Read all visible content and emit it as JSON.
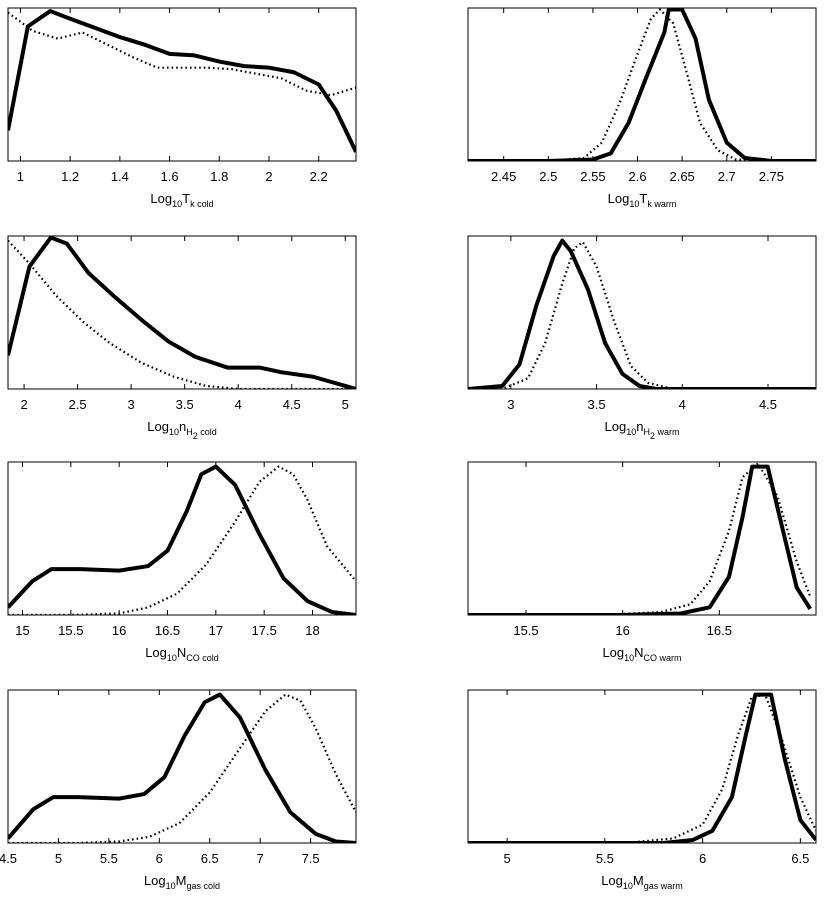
{
  "chart_data": [
    {
      "type": "line",
      "xlabel": {
        "base": "Log",
        "base_sub": "10",
        "var": "T",
        "var_sub": "k cold"
      },
      "xlim": [
        0.95,
        2.35
      ],
      "ylim": [
        0,
        1
      ],
      "xticks": [
        "1",
        "1.2",
        "1.4",
        "1.6",
        "1.8",
        "2",
        "2.2"
      ],
      "grid": false,
      "series": [
        {
          "style": "solid",
          "x": [
            0.95,
            1.03,
            1.12,
            1.2,
            1.3,
            1.4,
            1.5,
            1.6,
            1.7,
            1.8,
            1.9,
            2.0,
            2.1,
            2.2,
            2.27,
            2.35
          ],
          "y": [
            0.2,
            0.88,
            0.98,
            0.93,
            0.87,
            0.81,
            0.76,
            0.7,
            0.69,
            0.65,
            0.62,
            0.61,
            0.58,
            0.5,
            0.33,
            0.06
          ]
        },
        {
          "style": "dotted",
          "x": [
            0.95,
            1.05,
            1.15,
            1.25,
            1.35,
            1.45,
            1.55,
            1.65,
            1.75,
            1.85,
            1.95,
            2.05,
            2.15,
            2.25,
            2.35
          ],
          "y": [
            0.97,
            0.85,
            0.8,
            0.84,
            0.76,
            0.68,
            0.61,
            0.61,
            0.61,
            0.6,
            0.57,
            0.54,
            0.46,
            0.43,
            0.48
          ]
        }
      ]
    },
    {
      "type": "line",
      "xlabel": {
        "base": "Log",
        "base_sub": "10",
        "var": "T",
        "var_sub": "k warm"
      },
      "xlim": [
        2.41,
        2.8
      ],
      "ylim": [
        0,
        1
      ],
      "xticks": [
        "2.45",
        "2.5",
        "2.55",
        "2.6",
        "2.65",
        "2.7",
        "2.75"
      ],
      "grid": false,
      "series": [
        {
          "style": "solid",
          "x": [
            2.41,
            2.5,
            2.55,
            2.57,
            2.59,
            2.61,
            2.63,
            2.635,
            2.65,
            2.665,
            2.68,
            2.7,
            2.72,
            2.75,
            2.8
          ],
          "y": [
            0,
            0,
            0.01,
            0.05,
            0.25,
            0.55,
            0.84,
            0.99,
            0.99,
            0.8,
            0.4,
            0.12,
            0.02,
            0,
            0
          ]
        },
        {
          "style": "dotted",
          "x": [
            2.41,
            2.5,
            2.54,
            2.56,
            2.58,
            2.6,
            2.615,
            2.625,
            2.64,
            2.655,
            2.67,
            2.69,
            2.71,
            2.75
          ],
          "y": [
            0,
            0,
            0.02,
            0.12,
            0.38,
            0.7,
            0.93,
            0.99,
            0.9,
            0.58,
            0.25,
            0.07,
            0.01,
            0
          ]
        }
      ]
    },
    {
      "type": "line",
      "xlabel": {
        "base": "Log",
        "base_sub": "10",
        "var": "n",
        "var_sub": "H",
        "var_sub2": "2",
        "var_sub_tail": " cold"
      },
      "xlim": [
        1.85,
        5.1
      ],
      "ylim": [
        0,
        1
      ],
      "xticks": [
        "2",
        "2.5",
        "3",
        "3.5",
        "4",
        "4.5",
        "5"
      ],
      "grid": false,
      "series": [
        {
          "style": "solid",
          "x": [
            1.85,
            2.05,
            2.25,
            2.4,
            2.6,
            2.85,
            3.1,
            3.35,
            3.6,
            3.9,
            4.2,
            4.4,
            4.7,
            4.9,
            5.1
          ],
          "y": [
            0.22,
            0.8,
            0.99,
            0.95,
            0.76,
            0.6,
            0.45,
            0.31,
            0.21,
            0.14,
            0.14,
            0.11,
            0.08,
            0.04,
            0
          ]
        },
        {
          "style": "dotted",
          "x": [
            1.85,
            2.05,
            2.3,
            2.55,
            2.8,
            3.1,
            3.4,
            3.7,
            4.0,
            4.3,
            4.7,
            5.1
          ],
          "y": [
            0.97,
            0.82,
            0.61,
            0.44,
            0.3,
            0.17,
            0.08,
            0.02,
            0,
            0,
            0,
            0
          ]
        }
      ]
    },
    {
      "type": "line",
      "xlabel": {
        "base": "Log",
        "base_sub": "10",
        "var": "n",
        "var_sub": "H",
        "var_sub2": "2",
        "var_sub_tail": " warm"
      },
      "xlim": [
        2.75,
        4.78
      ],
      "ylim": [
        0,
        1
      ],
      "xticks": [
        "3",
        "3.5",
        "4",
        "4.5"
      ],
      "grid": false,
      "series": [
        {
          "style": "solid",
          "x": [
            2.75,
            2.95,
            3.05,
            3.15,
            3.25,
            3.3,
            3.35,
            3.45,
            3.55,
            3.65,
            3.75,
            3.85,
            4.0,
            4.78
          ],
          "y": [
            0,
            0.02,
            0.16,
            0.55,
            0.87,
            0.97,
            0.9,
            0.65,
            0.3,
            0.1,
            0.02,
            0,
            0,
            0
          ]
        },
        {
          "style": "dotted",
          "x": [
            2.75,
            2.95,
            3.1,
            3.2,
            3.3,
            3.37,
            3.42,
            3.5,
            3.6,
            3.7,
            3.8,
            3.95,
            4.78
          ],
          "y": [
            0,
            0,
            0.07,
            0.3,
            0.69,
            0.92,
            0.96,
            0.8,
            0.45,
            0.15,
            0.04,
            0,
            0
          ]
        }
      ]
    },
    {
      "type": "line",
      "xlabel": {
        "base": "Log",
        "base_sub": "10",
        "var": "N",
        "var_sub": "CO cold"
      },
      "xlim": [
        14.85,
        18.45
      ],
      "ylim": [
        0,
        1
      ],
      "xticks": [
        "15",
        "15.5",
        "16",
        "16.5",
        "17",
        "17.5",
        "18"
      ],
      "grid": false,
      "series": [
        {
          "style": "solid",
          "x": [
            14.85,
            15.1,
            15.3,
            15.6,
            16.0,
            16.3,
            16.5,
            16.7,
            16.85,
            17.0,
            17.2,
            17.45,
            17.7,
            17.95,
            18.2,
            18.45
          ],
          "y": [
            0.05,
            0.22,
            0.3,
            0.3,
            0.29,
            0.32,
            0.42,
            0.68,
            0.92,
            0.97,
            0.85,
            0.53,
            0.24,
            0.09,
            0.02,
            0
          ]
        },
        {
          "style": "dotted",
          "x": [
            14.85,
            15.5,
            16.0,
            16.3,
            16.6,
            16.9,
            17.2,
            17.45,
            17.65,
            17.8,
            17.95,
            18.15,
            18.45
          ],
          "y": [
            0,
            0,
            0.01,
            0.05,
            0.14,
            0.33,
            0.61,
            0.87,
            0.97,
            0.92,
            0.75,
            0.45,
            0.22
          ]
        }
      ]
    },
    {
      "type": "line",
      "xlabel": {
        "base": "Log",
        "base_sub": "10",
        "var": "N",
        "var_sub": "CO warm"
      },
      "xlim": [
        15.2,
        17.0
      ],
      "ylim": [
        0,
        1
      ],
      "xticks": [
        "15.5",
        "16",
        "16.5"
      ],
      "grid": false,
      "series": [
        {
          "style": "solid",
          "x": [
            15.2,
            16.0,
            16.3,
            16.45,
            16.55,
            16.62,
            16.67,
            16.75,
            16.82,
            16.9,
            16.97
          ],
          "y": [
            0,
            0,
            0.01,
            0.05,
            0.25,
            0.64,
            0.97,
            0.97,
            0.6,
            0.18,
            0.04
          ]
        },
        {
          "style": "dotted",
          "x": [
            15.2,
            15.9,
            16.2,
            16.35,
            16.45,
            16.55,
            16.62,
            16.7,
            16.8,
            16.9,
            16.97
          ],
          "y": [
            0,
            0,
            0.02,
            0.07,
            0.22,
            0.55,
            0.9,
            0.99,
            0.78,
            0.35,
            0.12
          ]
        }
      ]
    },
    {
      "type": "line",
      "xlabel": {
        "base": "Log",
        "base_sub": "10",
        "var": "M",
        "var_sub": "gas cold"
      },
      "xlim": [
        4.5,
        7.95
      ],
      "ylim": [
        0,
        1
      ],
      "xticks": [
        "4.5",
        "5",
        "5.5",
        "6",
        "6.5",
        "7",
        "7.5"
      ],
      "grid": false,
      "series": [
        {
          "style": "solid",
          "x": [
            4.5,
            4.75,
            4.95,
            5.2,
            5.6,
            5.85,
            6.05,
            6.25,
            6.45,
            6.6,
            6.8,
            7.05,
            7.3,
            7.55,
            7.75,
            7.95
          ],
          "y": [
            0.03,
            0.22,
            0.3,
            0.3,
            0.29,
            0.32,
            0.43,
            0.7,
            0.92,
            0.97,
            0.82,
            0.48,
            0.2,
            0.06,
            0.01,
            0
          ]
        },
        {
          "style": "dotted",
          "x": [
            4.5,
            5.2,
            5.6,
            5.9,
            6.2,
            6.5,
            6.8,
            7.05,
            7.25,
            7.4,
            7.55,
            7.75,
            7.95
          ],
          "y": [
            0,
            0,
            0.01,
            0.04,
            0.13,
            0.33,
            0.62,
            0.86,
            0.97,
            0.93,
            0.75,
            0.45,
            0.2
          ]
        }
      ]
    },
    {
      "type": "line",
      "xlabel": {
        "base": "Log",
        "base_sub": "10",
        "var": "M",
        "var_sub": "gas warm"
      },
      "xlim": [
        4.8,
        6.58
      ],
      "ylim": [
        0,
        1
      ],
      "xticks": [
        "5",
        "5.5",
        "6",
        "6.5"
      ],
      "grid": false,
      "series": [
        {
          "style": "solid",
          "x": [
            4.8,
            5.8,
            5.95,
            6.05,
            6.15,
            6.22,
            6.27,
            6.35,
            6.42,
            6.5,
            6.58
          ],
          "y": [
            0,
            0,
            0.02,
            0.08,
            0.3,
            0.7,
            0.97,
            0.97,
            0.55,
            0.15,
            0.02
          ]
        },
        {
          "style": "dotted",
          "x": [
            4.8,
            5.6,
            5.85,
            6.0,
            6.1,
            6.18,
            6.25,
            6.32,
            6.4,
            6.5,
            6.58
          ],
          "y": [
            0,
            0,
            0.03,
            0.12,
            0.35,
            0.7,
            0.95,
            0.97,
            0.7,
            0.3,
            0.08
          ]
        }
      ]
    }
  ]
}
